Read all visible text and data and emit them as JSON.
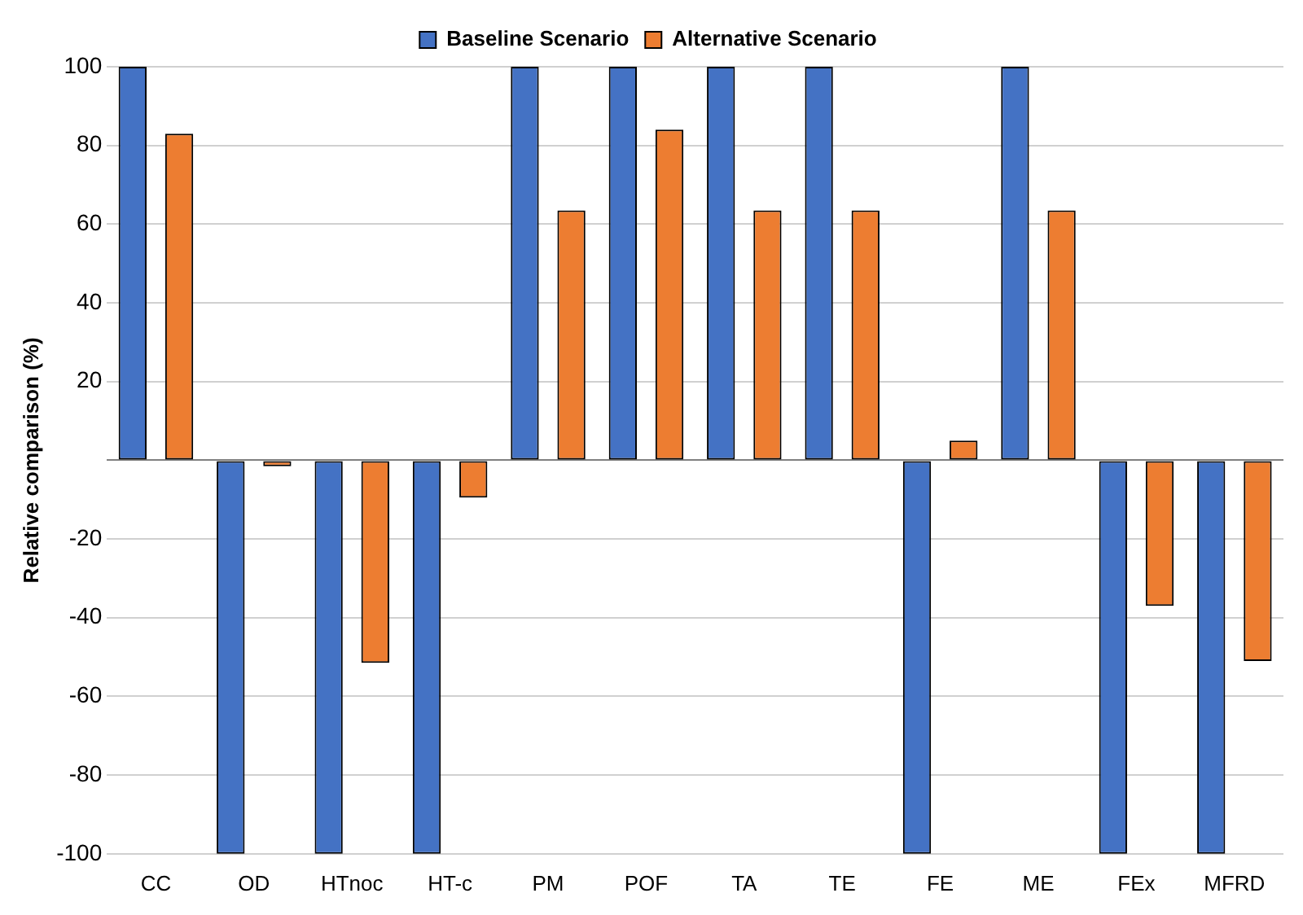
{
  "chart_data": {
    "type": "bar",
    "ylabel": "Relative comparison (%)",
    "categories": [
      "CC",
      "OD",
      "HTnoc",
      "HT-c",
      "PM",
      "POF",
      "TA",
      "TE",
      "FE",
      "ME",
      "FEx",
      "MFRD"
    ],
    "series": [
      {
        "name": "Baseline Scenario",
        "color": "#4472c4",
        "values": [
          100,
          -100,
          -100,
          -100,
          100,
          100,
          100,
          100,
          -100,
          100,
          -100,
          -100
        ]
      },
      {
        "name": "Alternative Scenario",
        "color": "#ed7d31",
        "values": [
          83,
          -1.5,
          -51.5,
          -9.5,
          63.5,
          84,
          63.5,
          63.5,
          5,
          63.5,
          -37,
          -51
        ]
      }
    ],
    "ylim": [
      -100,
      100
    ],
    "yticks": [
      -100,
      -80,
      -60,
      -40,
      -20,
      {
        "value": 0,
        "label": null
      },
      20,
      40,
      60,
      80,
      100
    ],
    "grid": "y",
    "legend": "top"
  }
}
